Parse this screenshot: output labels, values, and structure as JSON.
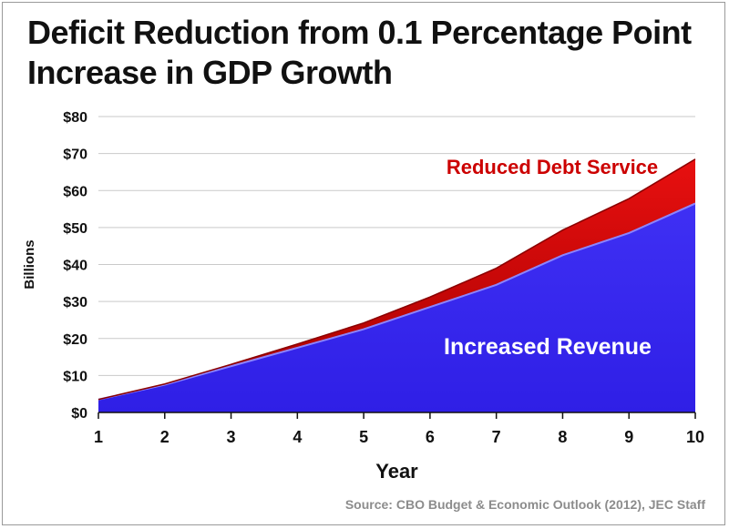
{
  "title_line1": "Deficit Reduction from 0.1 Percentage Point",
  "title_line2": "Increase in GDP Growth",
  "source": "Source: CBO Budget & Economic Outlook (2012), JEC Staff",
  "chart_data": {
    "type": "area",
    "stacked": true,
    "title": "Deficit Reduction from 0.1 Percentage Point Increase in GDP Growth",
    "xlabel": "Year",
    "ylabel": "Billions",
    "x": [
      1,
      2,
      3,
      4,
      5,
      6,
      7,
      8,
      9,
      10
    ],
    "ylim": [
      0,
      80
    ],
    "yticks": [
      0,
      10,
      20,
      30,
      40,
      50,
      60,
      70,
      80
    ],
    "ytick_labels": [
      "$0",
      "$10",
      "$20",
      "$30",
      "$40",
      "$50",
      "$60",
      "$70",
      "$80"
    ],
    "grid": true,
    "series": [
      {
        "name": "Increased Revenue",
        "color": "#3322ee",
        "values": [
          3.5,
          7.5,
          12.5,
          17.5,
          22.5,
          28.5,
          34.5,
          42.5,
          48.5,
          56.5
        ]
      },
      {
        "name": "Reduced Debt Service",
        "color": "#cc0000",
        "values": [
          0,
          0.2,
          0.5,
          1,
          1.7,
          2.7,
          4.5,
          6.8,
          9.3,
          12
        ]
      }
    ]
  }
}
